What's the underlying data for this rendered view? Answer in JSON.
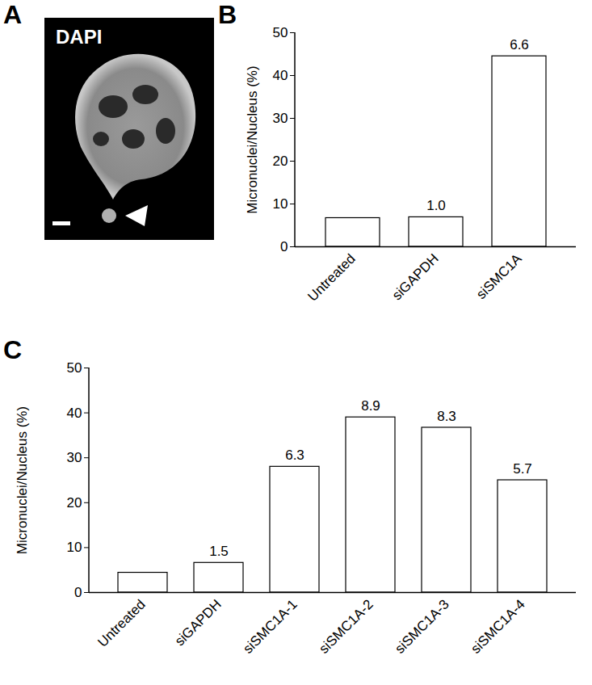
{
  "chart_data": [
    {
      "type": "bar",
      "panel_label": "B",
      "y_label": "Micronuclei/Nucleus (%)",
      "categories": [
        "Untreated",
        "siGAPDH",
        "siSMC1A"
      ],
      "values": [
        6.7,
        6.9,
        44.5
      ],
      "annotations": [
        null,
        "1.0",
        "6.6"
      ],
      "color": "#ffffff",
      "ylim": [
        0,
        50
      ],
      "yticks": [
        0,
        10,
        20,
        30,
        40,
        50
      ],
      "grid": false
    },
    {
      "type": "bar",
      "panel_label": "C",
      "y_label": "Micronuclei/Nucleus (%)",
      "categories": [
        "Untreated",
        "siGAPDH",
        "siSMC1A-1",
        "siSMC1A-2",
        "siSMC1A-3",
        "siSMC1A-4"
      ],
      "values": [
        4.4,
        6.6,
        28.0,
        39.0,
        36.7,
        25.0
      ],
      "annotations": [
        null,
        "1.5",
        "6.3",
        "8.9",
        "8.3",
        "5.7"
      ],
      "color": "#ffffff",
      "ylim": [
        0,
        50
      ],
      "yticks": [
        0,
        10,
        20,
        30,
        40,
        50
      ],
      "grid": false
    }
  ],
  "image_panel": {
    "panel_label": "A",
    "label": "DAPI"
  }
}
